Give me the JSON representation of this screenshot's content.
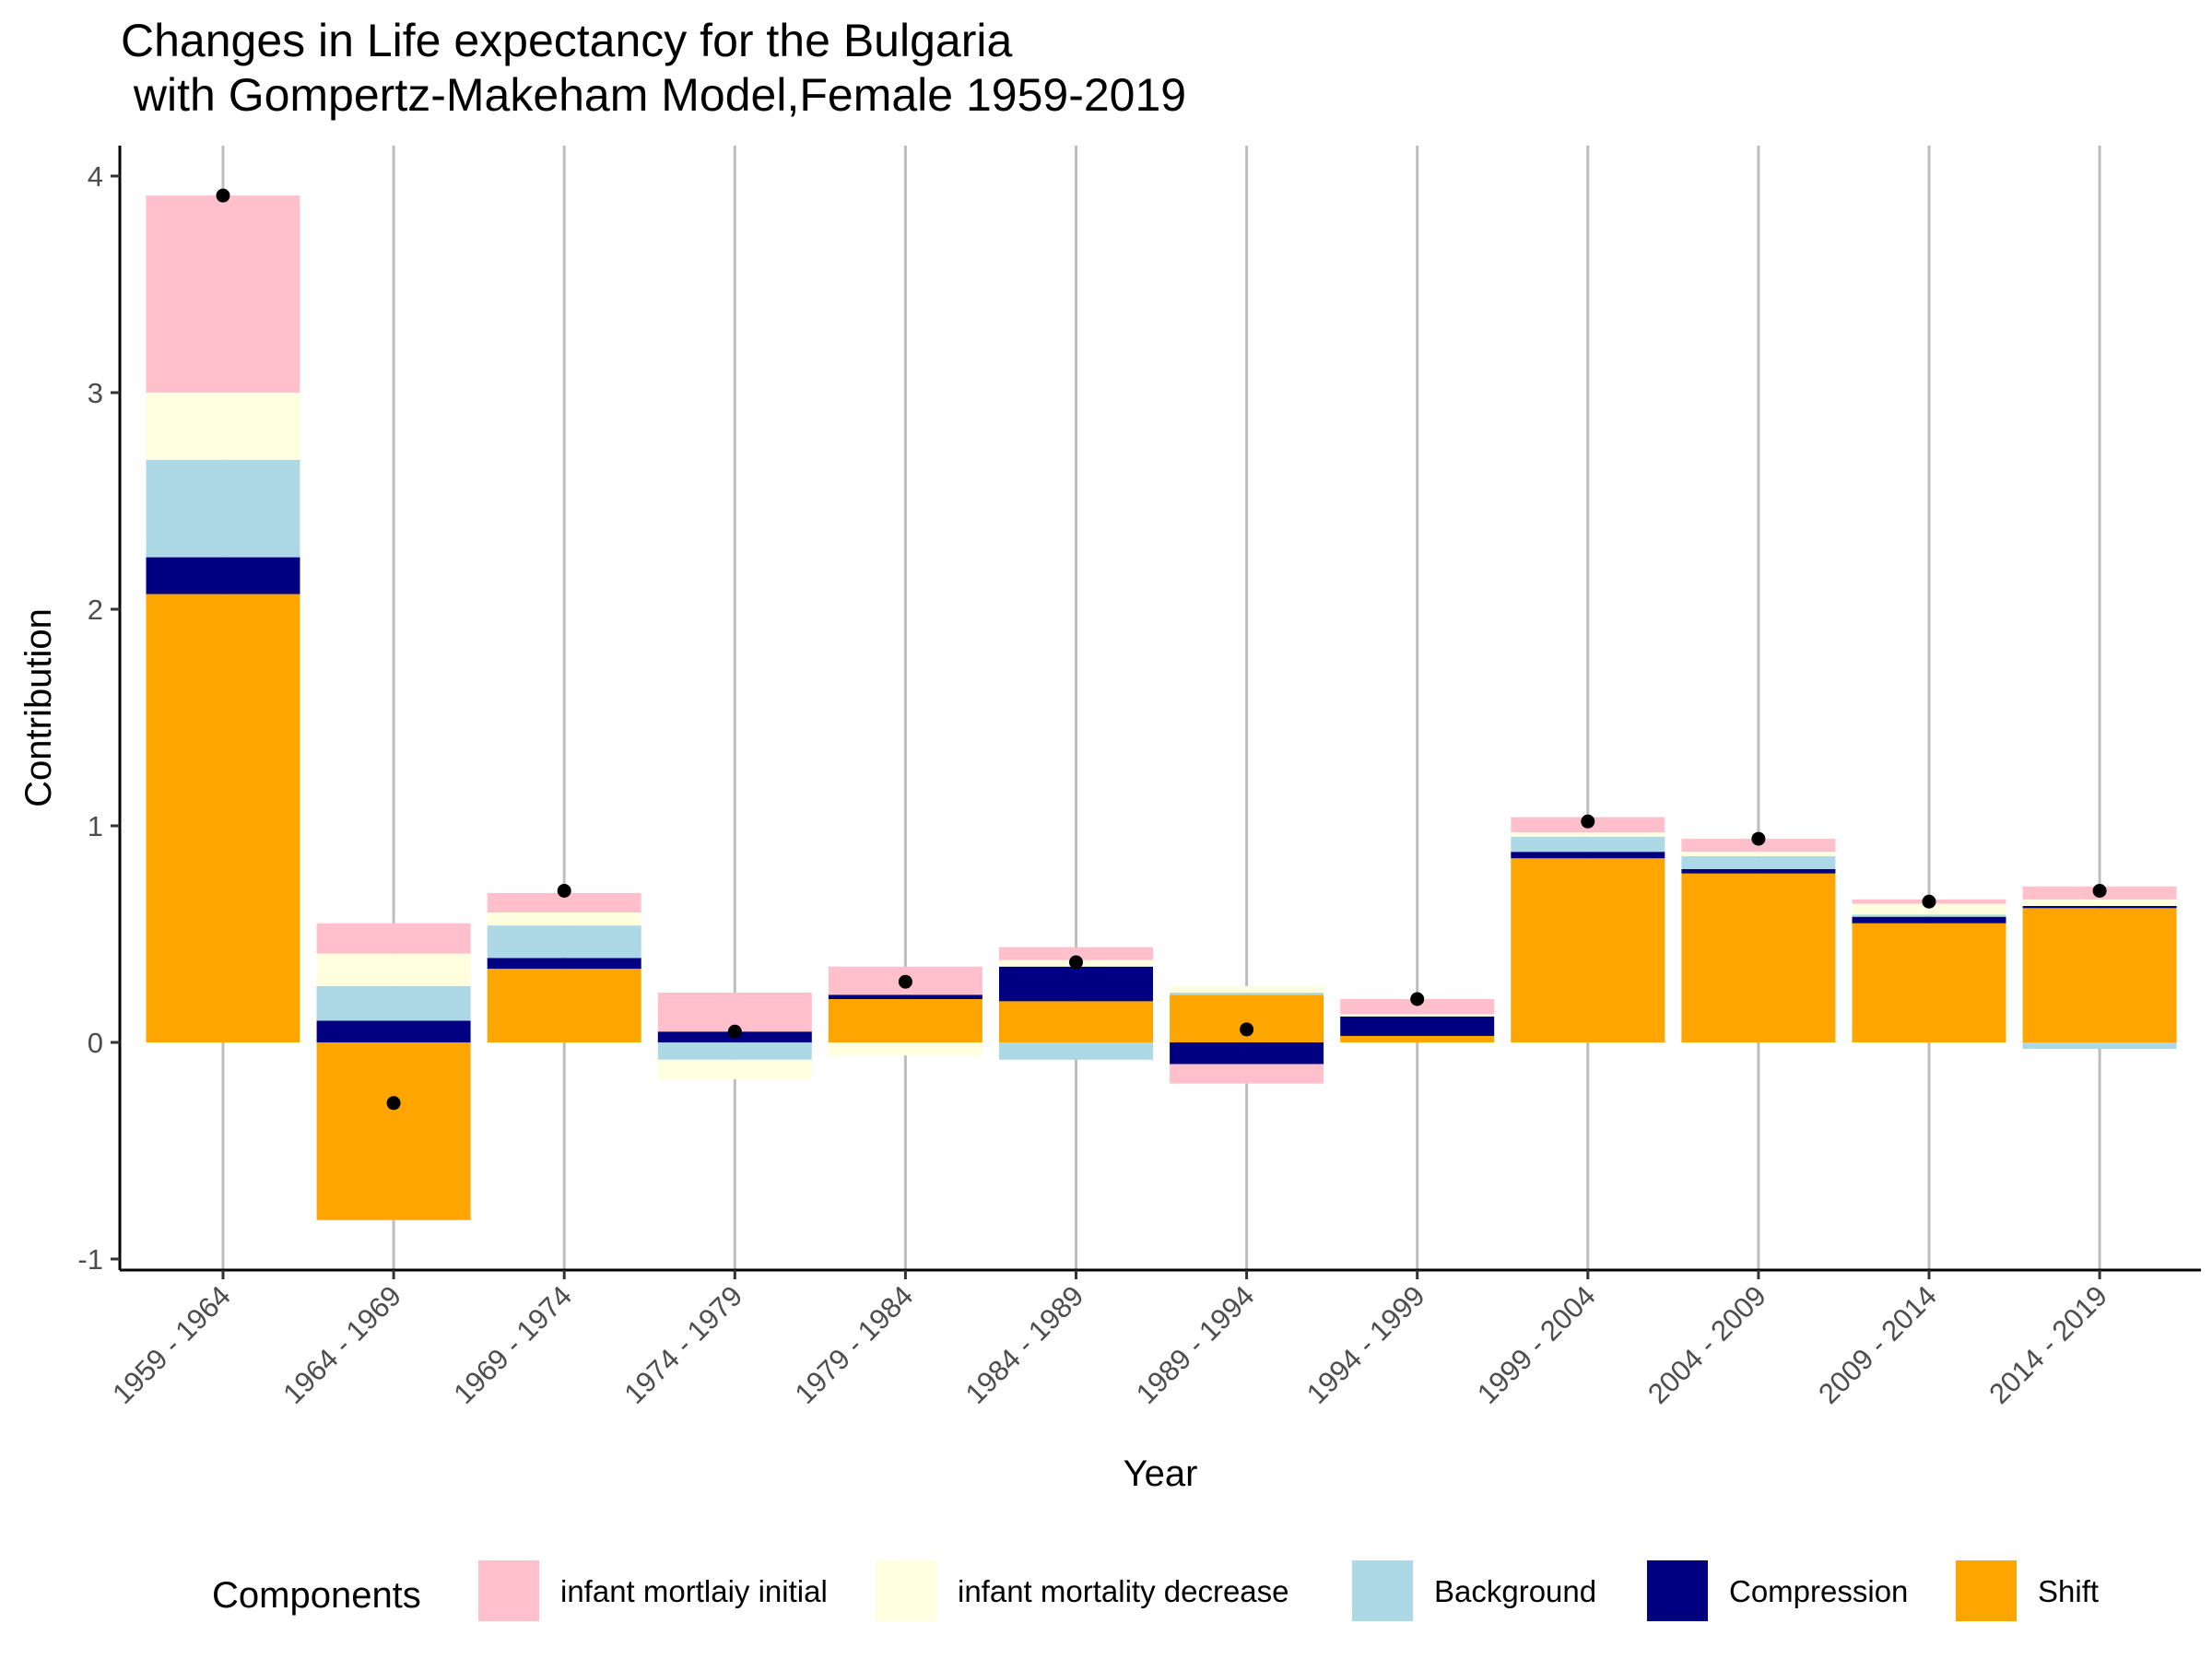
{
  "chart_data": {
    "type": "bar",
    "stacked": true,
    "title_lines": [
      "Changes in Life expectancy for the Bulgaria",
      " with Gompertz-Makeham Model,Female 1959-2019"
    ],
    "xlabel": "Year",
    "ylabel": "Contribution",
    "ylim": [
      -1.05,
      4.15
    ],
    "yticks": [
      -1,
      0,
      1,
      2,
      3,
      4
    ],
    "ytick_labels": [
      "-1",
      "0",
      "1",
      "2",
      "3",
      "4"
    ],
    "grid": "vertical",
    "categories": [
      "1959 - 1964",
      "1964 - 1969",
      "1969 - 1974",
      "1974 - 1979",
      "1979 - 1984",
      "1984 - 1989",
      "1989 - 1994",
      "1994 - 1999",
      "1999 - 2004",
      "2004 - 2009",
      "2009 - 2014",
      "2014 - 2019"
    ],
    "series": [
      {
        "name": "infant mortlaiy initial",
        "color": "#FFC0CB",
        "values": [
          0.91,
          0.14,
          0.09,
          0.18,
          0.13,
          0.06,
          -0.09,
          0.07,
          0.07,
          0.06,
          0.02,
          0.06
        ]
      },
      {
        "name": "infant mortality decrease",
        "color": "#FFFFE0",
        "values": [
          0.31,
          0.15,
          0.06,
          -0.09,
          -0.06,
          0.03,
          0.03,
          0.01,
          0.02,
          0.02,
          0.05,
          0.03
        ]
      },
      {
        "name": "Background",
        "color": "#ADD8E6",
        "values": [
          0.45,
          0.16,
          0.15,
          -0.08,
          0.0,
          -0.08,
          0.01,
          0.0,
          0.07,
          0.06,
          0.01,
          -0.03
        ]
      },
      {
        "name": "Compression",
        "color": "#000080",
        "values": [
          0.17,
          0.1,
          0.05,
          0.05,
          0.02,
          0.16,
          -0.1,
          0.09,
          0.03,
          0.02,
          0.03,
          0.01
        ]
      },
      {
        "name": "Shift",
        "color": "#FFA500",
        "values": [
          2.07,
          -0.82,
          0.34,
          0.0,
          0.2,
          0.19,
          0.22,
          0.03,
          0.85,
          0.78,
          0.55,
          0.62
        ]
      }
    ],
    "totals": [
      3.91,
      -0.28,
      0.7,
      0.05,
      0.28,
      0.37,
      0.06,
      0.2,
      1.02,
      0.94,
      0.65,
      0.7
    ],
    "legend": {
      "title": "Components",
      "position": "bottom"
    }
  }
}
